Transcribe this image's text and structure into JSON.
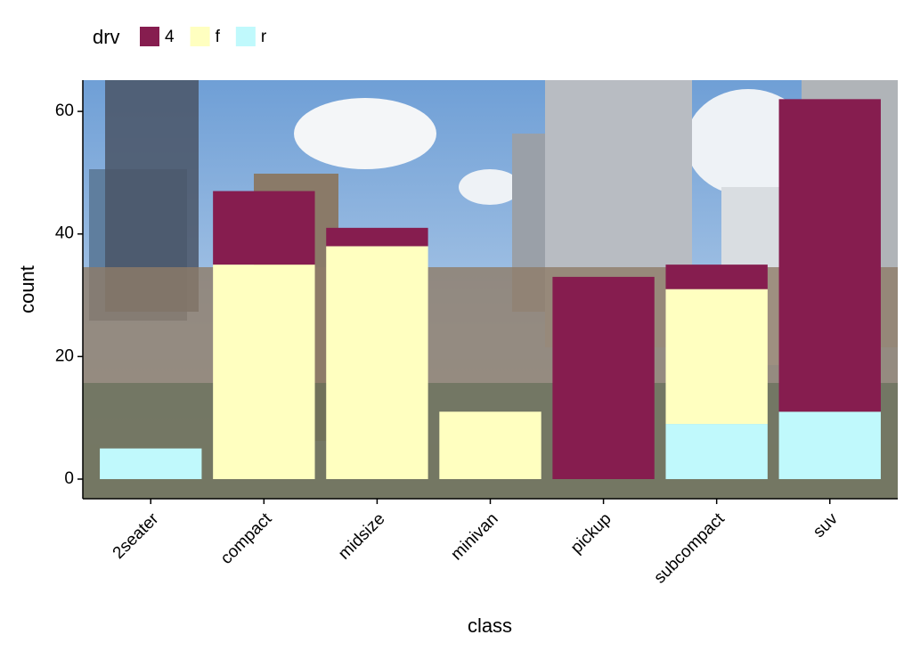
{
  "chart_data": {
    "type": "stacked_bar",
    "x_label": "class",
    "y_label": "count",
    "legend_title": "drv",
    "categories": [
      "2seater",
      "compact",
      "midsize",
      "minivan",
      "pickup",
      "subcompact",
      "suv"
    ],
    "series": [
      {
        "name": "4",
        "color": "#861d4f",
        "values": [
          null,
          12,
          3,
          null,
          33,
          4,
          51
        ]
      },
      {
        "name": "f",
        "color": "#ffffc0",
        "values": [
          null,
          35,
          38,
          11,
          null,
          22,
          null
        ]
      },
      {
        "name": "r",
        "color": "#c0f9fc",
        "values": [
          5,
          null,
          null,
          null,
          null,
          9,
          11
        ]
      }
    ],
    "ylim": [
      -3.2,
      65.1
    ],
    "yticks": [
      0,
      20,
      40,
      60
    ],
    "legend_position": "top"
  }
}
